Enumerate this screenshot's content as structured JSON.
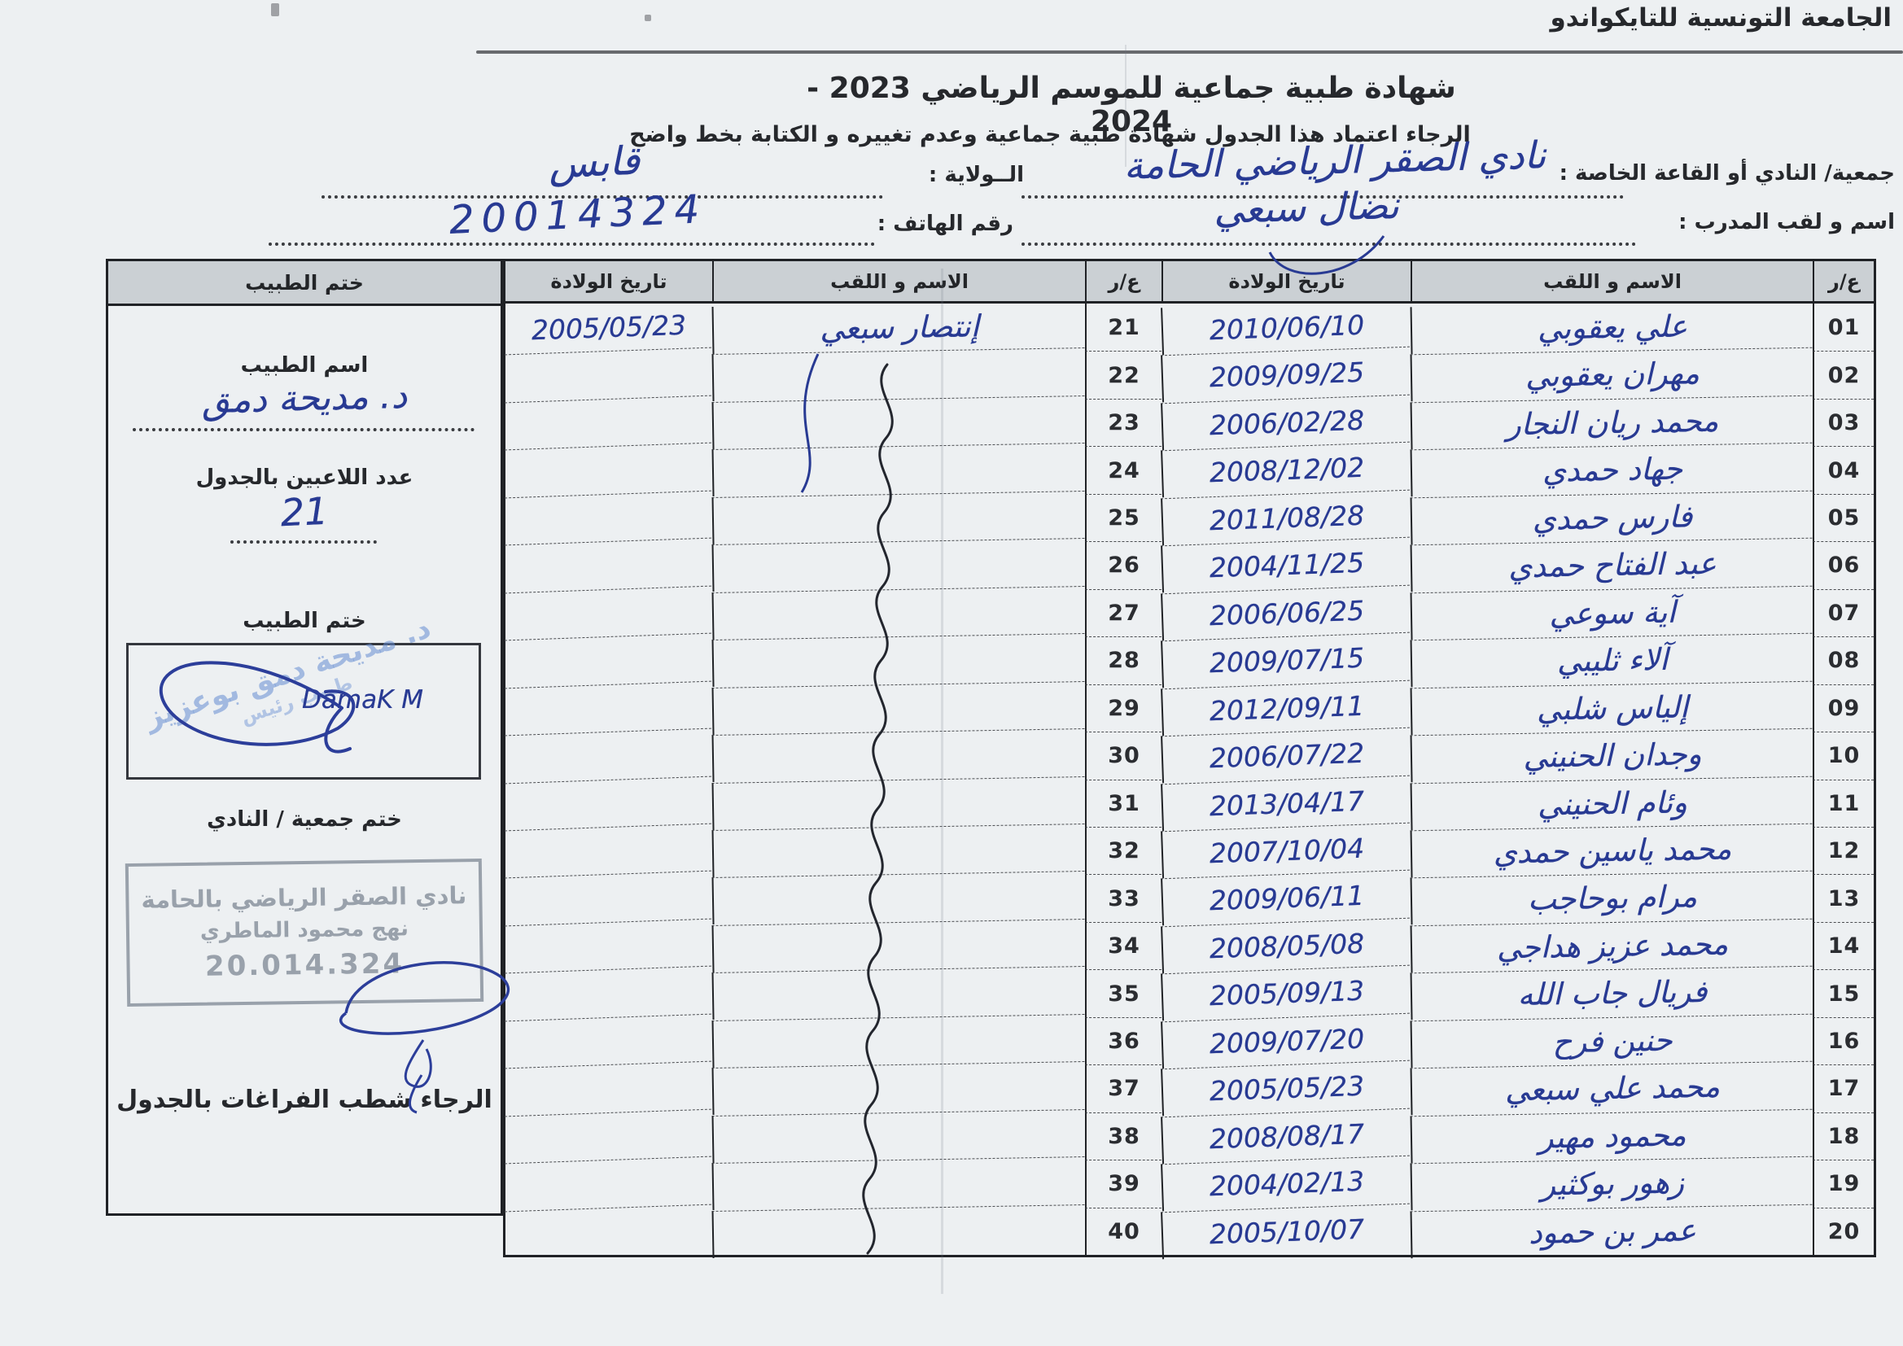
{
  "header": {
    "federation": "الجامعة التونسية للتايكواندو",
    "title": "شهادة طبية جماعية  للموسم الرياضي 2023 - 2024",
    "subtitle": "الرجاء اعتماد هذا الجدول  شهادة طبية جماعية وعدم تغييره و الكتابة بخط واضح"
  },
  "fields": {
    "club_label": "جمعية/ النادي أو القاعة الخاصة :",
    "club_value": "نادي الصقر الرياضي الحامة",
    "state_label": "الــولاية :",
    "state_value": "قابس",
    "coach_label": "اسم و لقب المدرب :",
    "coach_value": "نضال سبعي",
    "phone_label": "رقم الهاتف :",
    "phone_value": "20014324"
  },
  "table": {
    "headers": {
      "doctor_stamp": "ختم الطبيب",
      "birth_date": "تاريخ الولادة",
      "name": "الاسم و اللقب",
      "num": "ع/ر"
    },
    "right_rows": [
      {
        "num": "01",
        "name": "علي يعقوبي",
        "date": "2010/06/10"
      },
      {
        "num": "02",
        "name": "مهران يعقوبي",
        "date": "2009/09/25"
      },
      {
        "num": "03",
        "name": "محمد ريان النجار",
        "date": "2006/02/28"
      },
      {
        "num": "04",
        "name": "جهاد حمدي",
        "date": "2008/12/02"
      },
      {
        "num": "05",
        "name": "فارس حمدي",
        "date": "2011/08/28"
      },
      {
        "num": "06",
        "name": "عبد الفتاح حمدي",
        "date": "2004/11/25"
      },
      {
        "num": "07",
        "name": "آية سوعي",
        "date": "2006/06/25"
      },
      {
        "num": "08",
        "name": "آلاء ثليبي",
        "date": "2009/07/15"
      },
      {
        "num": "09",
        "name": "إلياس شلبي",
        "date": "2012/09/11"
      },
      {
        "num": "10",
        "name": "وجدان الحنيني",
        "date": "2006/07/22"
      },
      {
        "num": "11",
        "name": "وئام الحنيني",
        "date": "2013/04/17"
      },
      {
        "num": "12",
        "name": "محمد ياسين حمدي",
        "date": "2007/10/04"
      },
      {
        "num": "13",
        "name": "مرام بوحاجب",
        "date": "2009/06/11"
      },
      {
        "num": "14",
        "name": "محمد عزيز هداجي",
        "date": "2008/05/08"
      },
      {
        "num": "15",
        "name": "فريال جاب الله",
        "date": "2005/09/13"
      },
      {
        "num": "16",
        "name": "حنين فرح",
        "date": "2009/07/20"
      },
      {
        "num": "17",
        "name": "محمد علي سبعي",
        "date": "2005/05/23"
      },
      {
        "num": "18",
        "name": "محمود مهير",
        "date": "2008/08/17"
      },
      {
        "num": "19",
        "name": "زهور بوكثير",
        "date": "2004/02/13"
      },
      {
        "num": "20",
        "name": "عمر بن حمود",
        "date": "2005/10/07"
      }
    ],
    "left_rows": [
      {
        "num": "21",
        "name": "إنتصار سبعي",
        "date": "2005/05/23"
      },
      {
        "num": "22",
        "name": "",
        "date": ""
      },
      {
        "num": "23",
        "name": "",
        "date": ""
      },
      {
        "num": "24",
        "name": "",
        "date": ""
      },
      {
        "num": "25",
        "name": "",
        "date": ""
      },
      {
        "num": "26",
        "name": "",
        "date": ""
      },
      {
        "num": "27",
        "name": "",
        "date": ""
      },
      {
        "num": "28",
        "name": "",
        "date": ""
      },
      {
        "num": "29",
        "name": "",
        "date": ""
      },
      {
        "num": "30",
        "name": "",
        "date": ""
      },
      {
        "num": "31",
        "name": "",
        "date": ""
      },
      {
        "num": "32",
        "name": "",
        "date": ""
      },
      {
        "num": "33",
        "name": "",
        "date": ""
      },
      {
        "num": "34",
        "name": "",
        "date": ""
      },
      {
        "num": "35",
        "name": "",
        "date": ""
      },
      {
        "num": "36",
        "name": "",
        "date": ""
      },
      {
        "num": "37",
        "name": "",
        "date": ""
      },
      {
        "num": "38",
        "name": "",
        "date": ""
      },
      {
        "num": "39",
        "name": "",
        "date": ""
      },
      {
        "num": "40",
        "name": "",
        "date": ""
      }
    ]
  },
  "doctor_panel": {
    "doctor_name_label": "اسم الطبيب",
    "doctor_name_value": "د. مديحة دمق",
    "players_count_label": "عدد اللاعبين بالجدول",
    "players_count_value": "21",
    "doctor_stamp_label": "ختم الطبيب",
    "signature_text": "DamaK M",
    "faint_stamp_line1": "د. مديحة دمق بوعزيز",
    "faint_stamp_line2": "طبيب رئيس",
    "club_stamp_label": "ختم جمعية / النادي",
    "club_stamp_line1": "نادي الصقر الرياضي بالحامة",
    "club_stamp_line2": "نهج محمود الماطري",
    "club_stamp_line3": "20.014.324",
    "note": "الرجاء شطب الفراغات بالجدول"
  },
  "colors": {
    "paper": "#edf0f2",
    "print_ink": "#26282c",
    "hand_ink_blue": "#283a93",
    "stamp_gray": "#99a1ab",
    "stamp_light_blue": "#6e8cd2",
    "table_header_bg": "#cbd0d4"
  }
}
